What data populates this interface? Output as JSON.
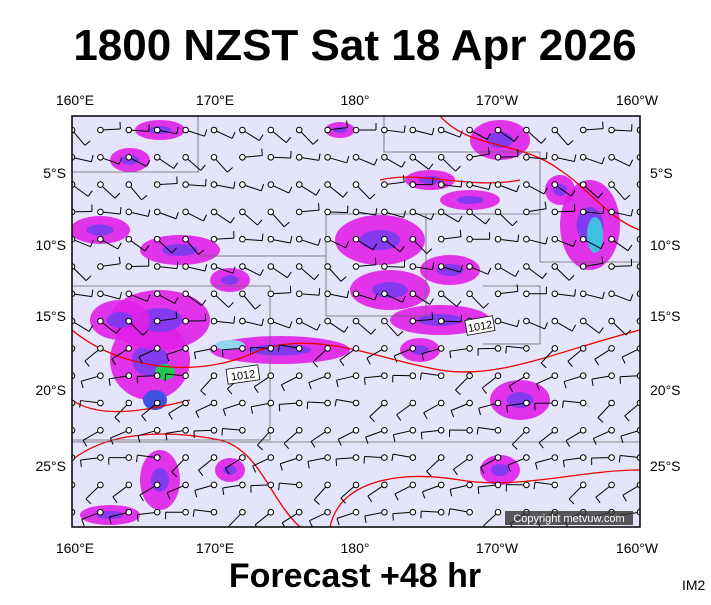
{
  "title": "1800 NZST Sat 18 Apr 2026",
  "top_axis": {
    "labels": [
      "160°E",
      "170°E",
      "180°",
      "170°W",
      "160°W"
    ]
  },
  "bottom_axis": {
    "labels": [
      "160°E",
      "170°E",
      "180°",
      "170°W",
      "160°W"
    ]
  },
  "left_axis": {
    "labels": [
      "5°S",
      "10°S",
      "15°S",
      "20°S",
      "25°S"
    ]
  },
  "right_axis": {
    "labels": [
      "5°S",
      "10°S",
      "15°S",
      "20°S",
      "25°S"
    ]
  },
  "isobar_labels": [
    "1012",
    "1012"
  ],
  "copyright": "Copyright metvuw.com",
  "footer": "Forecast +48 hr",
  "image_id": "IM2"
}
